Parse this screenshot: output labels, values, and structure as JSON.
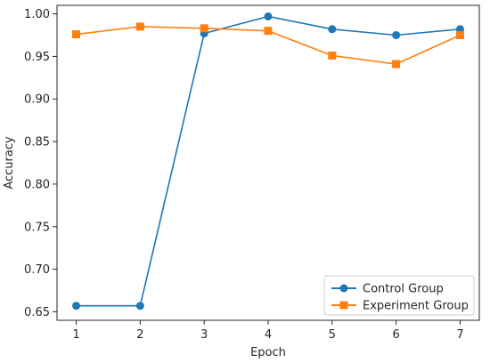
{
  "chart_data": {
    "type": "line",
    "title": "",
    "xlabel": "Epoch",
    "ylabel": "Accuracy",
    "x": [
      1,
      2,
      3,
      4,
      5,
      6,
      7
    ],
    "xlim": [
      0.7,
      7.3
    ],
    "ylim": [
      0.64,
      1.01
    ],
    "xticks": [
      "1",
      "2",
      "3",
      "4",
      "5",
      "6",
      "7"
    ],
    "yticks": [
      "0.65",
      "0.70",
      "0.75",
      "0.80",
      "0.85",
      "0.90",
      "0.95",
      "1.00"
    ],
    "grid": false,
    "legend_position": "lower-right",
    "series": [
      {
        "name": "Control Group",
        "color": "#1f77b4",
        "marker": "circle",
        "values": [
          0.657,
          0.657,
          0.977,
          0.997,
          0.982,
          0.975,
          0.982
        ]
      },
      {
        "name": "Experiment Group",
        "color": "#ff7f0e",
        "marker": "square",
        "values": [
          0.976,
          0.985,
          0.983,
          0.98,
          0.951,
          0.941,
          0.975
        ]
      }
    ]
  }
}
